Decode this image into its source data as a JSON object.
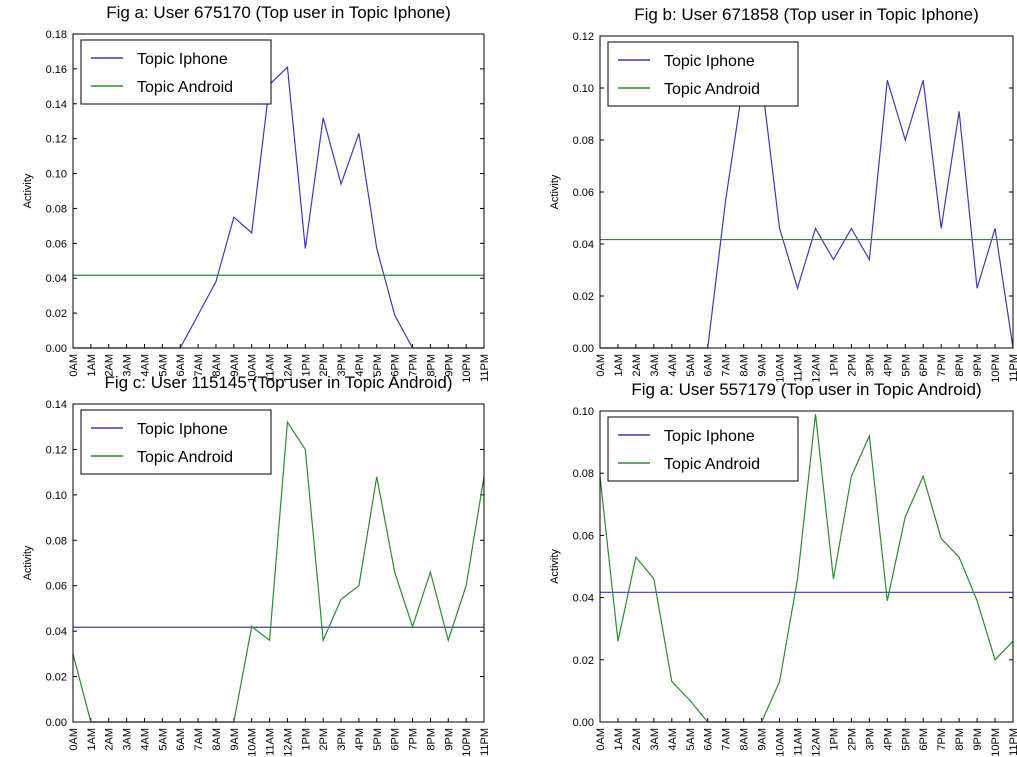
{
  "chart_data": [
    {
      "type": "line",
      "title": "Fig a: User 675170 (Top user in Topic Iphone)",
      "y_label": "Activity",
      "categories": [
        "0AM",
        "1AM",
        "2AM",
        "3AM",
        "4AM",
        "5AM",
        "6AM",
        "7AM",
        "8AM",
        "9AM",
        "10AM",
        "11AM",
        "12AM",
        "1PM",
        "2PM",
        "3PM",
        "4PM",
        "5PM",
        "6PM",
        "7PM",
        "8PM",
        "9PM",
        "10PM",
        "11PM"
      ],
      "series": [
        {
          "name": "Topic Iphone",
          "color": "#3c3cb4",
          "values": [
            0,
            0,
            0,
            0,
            0,
            0,
            0,
            0.019,
            0.038,
            0.075,
            0.066,
            0.151,
            0.161,
            0.057,
            0.132,
            0.094,
            0.123,
            0.057,
            0.019,
            0,
            0,
            0,
            0,
            0
          ]
        },
        {
          "name": "Topic Android",
          "color": "#2e8b2e",
          "values": [
            0.0417,
            0.0417,
            0.0417,
            0.0417,
            0.0417,
            0.0417,
            0.0417,
            0.0417,
            0.0417,
            0.0417,
            0.0417,
            0.0417,
            0.0417,
            0.0417,
            0.0417,
            0.0417,
            0.0417,
            0.0417,
            0.0417,
            0.0417,
            0.0417,
            0.0417,
            0.0417,
            0.0417
          ]
        }
      ],
      "ylim": [
        0,
        0.18
      ],
      "yticks": [
        {
          "value": 0,
          "label": "0.00"
        },
        {
          "value": 0.02,
          "label": "0.02"
        },
        {
          "value": 0.04,
          "label": "0.04"
        },
        {
          "value": 0.06,
          "label": "0.06"
        },
        {
          "value": 0.08,
          "label": "0.08"
        },
        {
          "value": 0.1,
          "label": "0.10"
        },
        {
          "value": 0.12,
          "label": "0.12"
        },
        {
          "value": 0.14,
          "label": "0.14"
        },
        {
          "value": 0.16,
          "label": "0.16"
        },
        {
          "value": 0.18,
          "label": "0.18"
        }
      ],
      "legend": "upper left"
    },
    {
      "type": "line",
      "title": "Fig b: User 671858 (Top user in Topic Iphone)",
      "y_label": "Activity",
      "categories": [
        "0AM",
        "1AM",
        "2AM",
        "3AM",
        "4AM",
        "5AM",
        "6AM",
        "7AM",
        "8AM",
        "9AM",
        "10AM",
        "11AM",
        "12AM",
        "1PM",
        "2PM",
        "3PM",
        "4PM",
        "5PM",
        "6PM",
        "7PM",
        "8PM",
        "9PM",
        "10PM",
        "11PM"
      ],
      "series": [
        {
          "name": "Topic Iphone",
          "color": "#3c3cb4",
          "values": [
            0,
            0,
            0,
            0,
            0,
            0,
            0,
            0.057,
            0.103,
            0.103,
            0.046,
            0.023,
            0.046,
            0.034,
            0.046,
            0.034,
            0.103,
            0.08,
            0.103,
            0.046,
            0.091,
            0.023,
            0.046,
            0
          ]
        },
        {
          "name": "Topic Android",
          "color": "#2e8b2e",
          "values": [
            0.0417,
            0.0417,
            0.0417,
            0.0417,
            0.0417,
            0.0417,
            0.0417,
            0.0417,
            0.0417,
            0.0417,
            0.0417,
            0.0417,
            0.0417,
            0.0417,
            0.0417,
            0.0417,
            0.0417,
            0.0417,
            0.0417,
            0.0417,
            0.0417,
            0.0417,
            0.0417,
            0.0417
          ]
        }
      ],
      "ylim": [
        0,
        0.12
      ],
      "yticks": [
        {
          "value": 0,
          "label": "0.00"
        },
        {
          "value": 0.02,
          "label": "0.02"
        },
        {
          "value": 0.04,
          "label": "0.04"
        },
        {
          "value": 0.06,
          "label": "0.06"
        },
        {
          "value": 0.08,
          "label": "0.08"
        },
        {
          "value": 0.1,
          "label": "0.10"
        },
        {
          "value": 0.12,
          "label": "0.12"
        }
      ],
      "legend": "upper left"
    },
    {
      "type": "line",
      "title": "Fig c: User 115145 (Top user in Topic Android)",
      "y_label": "Activity",
      "categories": [
        "0AM",
        "1AM",
        "2AM",
        "3AM",
        "4AM",
        "5AM",
        "6AM",
        "7AM",
        "8AM",
        "9AM",
        "10AM",
        "11AM",
        "12AM",
        "1PM",
        "2PM",
        "3PM",
        "4PM",
        "5PM",
        "6PM",
        "7PM",
        "8PM",
        "9PM",
        "10PM",
        "11PM"
      ],
      "series": [
        {
          "name": "Topic Iphone",
          "color": "#3c3cb4",
          "values": [
            0.0417,
            0.0417,
            0.0417,
            0.0417,
            0.0417,
            0.0417,
            0.0417,
            0.0417,
            0.0417,
            0.0417,
            0.0417,
            0.0417,
            0.0417,
            0.0417,
            0.0417,
            0.0417,
            0.0417,
            0.0417,
            0.0417,
            0.0417,
            0.0417,
            0.0417,
            0.0417,
            0.0417
          ]
        },
        {
          "name": "Topic Android",
          "color": "#2e8b2e",
          "values": [
            0.03,
            0,
            0,
            0,
            0,
            0,
            0,
            0,
            0,
            0,
            0.042,
            0.036,
            0.132,
            0.12,
            0.036,
            0.054,
            0.06,
            0.108,
            0.066,
            0.042,
            0.066,
            0.036,
            0.06,
            0.108
          ]
        }
      ],
      "ylim": [
        0,
        0.14
      ],
      "yticks": [
        {
          "value": 0,
          "label": "0.00"
        },
        {
          "value": 0.02,
          "label": "0.02"
        },
        {
          "value": 0.04,
          "label": "0.04"
        },
        {
          "value": 0.06,
          "label": "0.06"
        },
        {
          "value": 0.08,
          "label": "0.08"
        },
        {
          "value": 0.1,
          "label": "0.10"
        },
        {
          "value": 0.12,
          "label": "0.12"
        },
        {
          "value": 0.14,
          "label": "0.14"
        }
      ],
      "legend": "upper left"
    },
    {
      "type": "line",
      "title": "Fig a: User 557179 (Top user in Topic Android)",
      "y_label": "Activity",
      "categories": [
        "0AM",
        "1AM",
        "2AM",
        "3AM",
        "4AM",
        "5AM",
        "6AM",
        "7AM",
        "8AM",
        "9AM",
        "10AM",
        "11AM",
        "12AM",
        "1PM",
        "2PM",
        "3PM",
        "4PM",
        "5PM",
        "6PM",
        "7PM",
        "8PM",
        "9PM",
        "10PM",
        "11PM"
      ],
      "series": [
        {
          "name": "Topic Iphone",
          "color": "#3c3cb4",
          "values": [
            0.0417,
            0.0417,
            0.0417,
            0.0417,
            0.0417,
            0.0417,
            0.0417,
            0.0417,
            0.0417,
            0.0417,
            0.0417,
            0.0417,
            0.0417,
            0.0417,
            0.0417,
            0.0417,
            0.0417,
            0.0417,
            0.0417,
            0.0417,
            0.0417,
            0.0417,
            0.0417,
            0.0417
          ]
        },
        {
          "name": "Topic Android",
          "color": "#2e8b2e",
          "values": [
            0.079,
            0.026,
            0.053,
            0.046,
            0.013,
            0.007,
            0,
            0,
            0,
            0,
            0.013,
            0.046,
            0.099,
            0.046,
            0.079,
            0.092,
            0.039,
            0.066,
            0.079,
            0.059,
            0.053,
            0.039,
            0.02,
            0.026
          ]
        }
      ],
      "ylim": [
        0,
        0.1
      ],
      "yticks": [
        {
          "value": 0,
          "label": "0.00"
        },
        {
          "value": 0.02,
          "label": "0.02"
        },
        {
          "value": 0.04,
          "label": "0.04"
        },
        {
          "value": 0.06,
          "label": "0.06"
        },
        {
          "value": 0.08,
          "label": "0.08"
        },
        {
          "value": 0.1,
          "label": "0.10"
        }
      ],
      "legend": "upper left"
    }
  ]
}
